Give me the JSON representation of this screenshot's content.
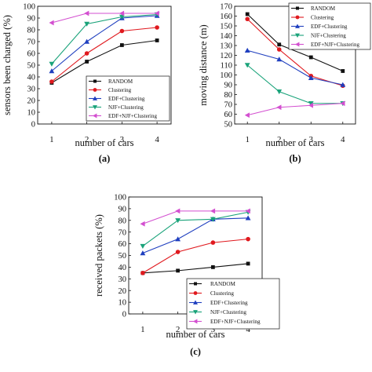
{
  "chart_data": [
    {
      "type": "line",
      "panel_label": "(a)",
      "xlabel": "number of cars",
      "ylabel": "sensors been charged (%)",
      "x": [
        1,
        2,
        3,
        4
      ],
      "x_ticks": [
        "1",
        "2",
        "3",
        "4"
      ],
      "xlim": [
        0.6,
        4.4
      ],
      "ylim": [
        0,
        100
      ],
      "y_ticks": [
        0,
        10,
        20,
        30,
        40,
        50,
        60,
        70,
        80,
        90,
        100
      ],
      "grid": false,
      "legend_position": "bottom-right",
      "series": [
        {
          "name": "RANDOM",
          "color": "#111111",
          "marker": "square",
          "values": [
            35,
            53,
            67,
            71
          ]
        },
        {
          "name": "Clustering",
          "color": "#e0191e",
          "marker": "circle",
          "values": [
            36,
            60,
            79,
            82
          ]
        },
        {
          "name": "EDF+Clustering",
          "color": "#1f3fbf",
          "marker": "triangle-up",
          "values": [
            45,
            70,
            90,
            92
          ]
        },
        {
          "name": "NJF+Clustering",
          "color": "#1aa37a",
          "marker": "triangle-down",
          "values": [
            51,
            85,
            91,
            93
          ]
        },
        {
          "name": "EDF+NJF+Clustering",
          "color": "#d34fd0",
          "marker": "triangle-left",
          "values": [
            86,
            94,
            94,
            94
          ]
        }
      ]
    },
    {
      "type": "line",
      "panel_label": "(b)",
      "xlabel": "number of cars",
      "ylabel": "moving distance (m)",
      "x": [
        1,
        2,
        3,
        4
      ],
      "x_ticks": [
        "1",
        "2",
        "3",
        "4"
      ],
      "xlim": [
        0.6,
        4.4
      ],
      "ylim": [
        50,
        170
      ],
      "y_ticks": [
        50,
        60,
        70,
        80,
        90,
        100,
        110,
        120,
        130,
        140,
        150,
        160,
        170
      ],
      "grid": false,
      "legend_position": "top-right",
      "series": [
        {
          "name": "RANDOM",
          "color": "#111111",
          "marker": "square",
          "values": [
            162,
            131,
            118,
            104
          ]
        },
        {
          "name": "Clustering",
          "color": "#e0191e",
          "marker": "circle",
          "values": [
            157,
            126,
            99,
            89
          ]
        },
        {
          "name": "EDF+Clustering",
          "color": "#1f3fbf",
          "marker": "triangle-up",
          "values": [
            125,
            116,
            97,
            90
          ]
        },
        {
          "name": "NJF+Clustering",
          "color": "#1aa37a",
          "marker": "triangle-down",
          "values": [
            110,
            83,
            71,
            71
          ]
        },
        {
          "name": "EDF+NJF+Clustering",
          "color": "#d34fd0",
          "marker": "triangle-left",
          "values": [
            59,
            67,
            69,
            71
          ]
        }
      ]
    },
    {
      "type": "line",
      "panel_label": "(c)",
      "xlabel": "number of cars",
      "ylabel": "received packets (%)",
      "x": [
        1,
        2,
        3,
        4
      ],
      "x_ticks": [
        "1",
        "2",
        "3",
        "4"
      ],
      "xlim": [
        0.6,
        4.4
      ],
      "ylim": [
        0,
        100
      ],
      "y_ticks": [
        0,
        10,
        20,
        30,
        40,
        50,
        60,
        70,
        80,
        90,
        100
      ],
      "grid": false,
      "legend_position": "bottom-right",
      "series": [
        {
          "name": "RANDOM",
          "color": "#111111",
          "marker": "square",
          "values": [
            35,
            37,
            40,
            43
          ]
        },
        {
          "name": "Clustering",
          "color": "#e0191e",
          "marker": "circle",
          "values": [
            35,
            53,
            61,
            64
          ]
        },
        {
          "name": "EDF+Clustering",
          "color": "#1f3fbf",
          "marker": "triangle-up",
          "values": [
            52,
            64,
            81,
            82
          ]
        },
        {
          "name": "NJF+Clustering",
          "color": "#1aa37a",
          "marker": "triangle-down",
          "values": [
            58,
            80,
            81,
            87
          ]
        },
        {
          "name": "EDF+NJF+Clustering",
          "color": "#d34fd0",
          "marker": "triangle-left",
          "values": [
            77,
            88,
            88,
            88
          ]
        }
      ]
    }
  ]
}
